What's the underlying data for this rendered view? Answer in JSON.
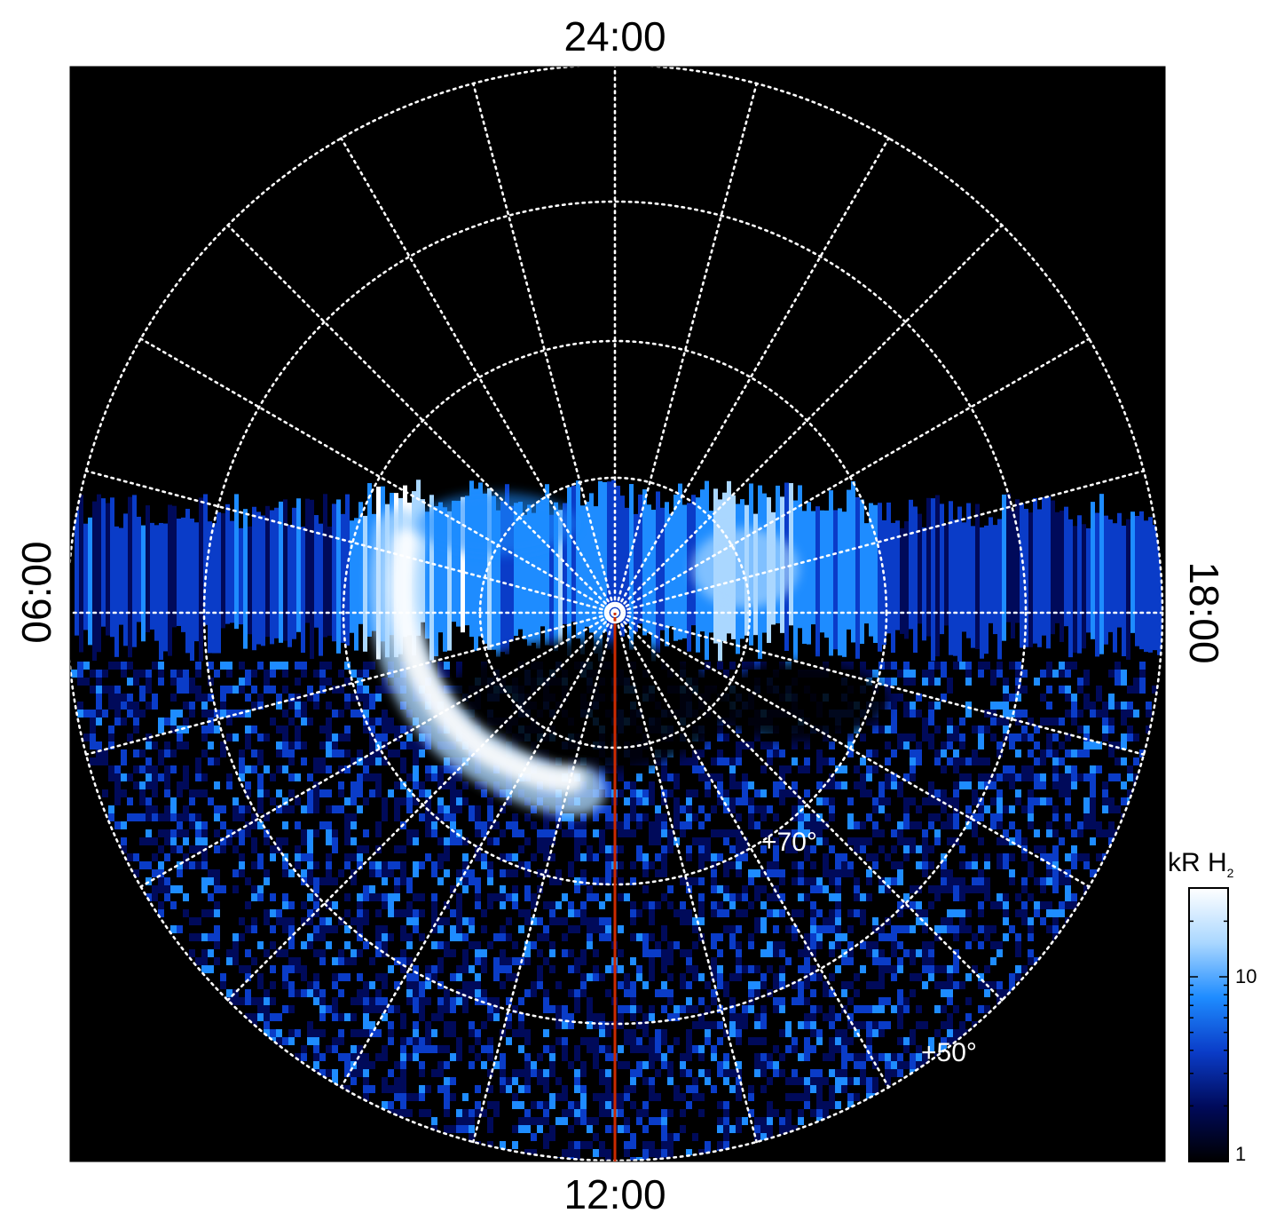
{
  "chart_data": {
    "type": "heatmap",
    "projection": "polar (north pole centered)",
    "local_time_labels": {
      "top": "24:00",
      "bottom": "12:00",
      "left": "06:00",
      "right": "18:00"
    },
    "latitude_labels": [
      "+70°",
      "+50°"
    ],
    "colorbar": {
      "title_main": "kR H",
      "title_sub": "2",
      "ticks": [
        "10",
        "1"
      ],
      "scale": "log",
      "colors": [
        "#000000",
        "#000a5a",
        "#0a3cc8",
        "#1e8cff",
        "#aad7ff",
        "#ffffff"
      ]
    },
    "grid": true,
    "background_color": "#000000",
    "grid_color": "#ffffff",
    "marker_line_color": "#cc2a00"
  }
}
